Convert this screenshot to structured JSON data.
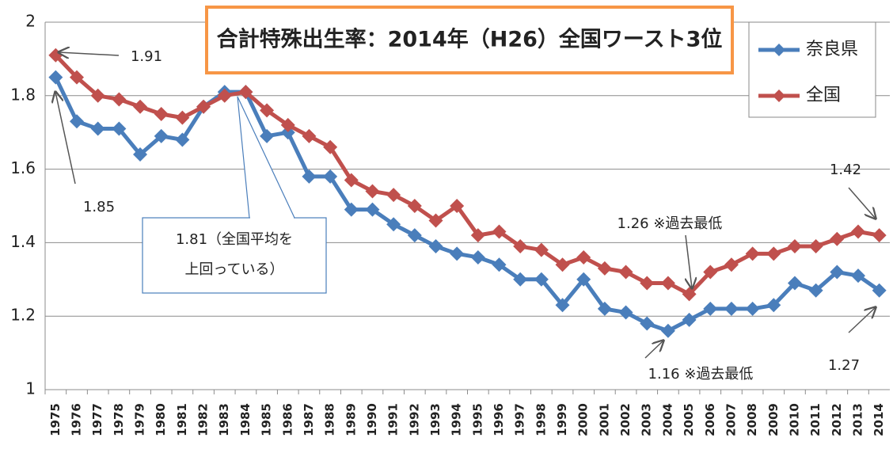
{
  "chart_data": {
    "type": "line",
    "title": "合計特殊出生率：2014年（H26）全国ワースト3位",
    "categories": [
      "1975",
      "1976",
      "1977",
      "1978",
      "1979",
      "1980",
      "1981",
      "1982",
      "1983",
      "1984",
      "1985",
      "1986",
      "1987",
      "1988",
      "1989",
      "1990",
      "1991",
      "1992",
      "1993",
      "1994",
      "1995",
      "1996",
      "1997",
      "1998",
      "1999",
      "2000",
      "2001",
      "2002",
      "2003",
      "2004",
      "2005",
      "2006",
      "2007",
      "2008",
      "2009",
      "2010",
      "2011",
      "2012",
      "2013",
      "2014"
    ],
    "series": [
      {
        "name": "奈良県",
        "color": "#4a7ebb",
        "values": [
          1.85,
          1.73,
          1.71,
          1.71,
          1.64,
          1.69,
          1.68,
          1.77,
          1.81,
          1.81,
          1.69,
          1.7,
          1.58,
          1.58,
          1.49,
          1.49,
          1.45,
          1.42,
          1.39,
          1.37,
          1.36,
          1.34,
          1.3,
          1.3,
          1.23,
          1.3,
          1.22,
          1.21,
          1.18,
          1.16,
          1.19,
          1.22,
          1.22,
          1.22,
          1.23,
          1.29,
          1.27,
          1.32,
          1.31,
          1.27
        ]
      },
      {
        "name": "全国",
        "color": "#c0504d",
        "values": [
          1.91,
          1.85,
          1.8,
          1.79,
          1.77,
          1.75,
          1.74,
          1.77,
          1.8,
          1.81,
          1.76,
          1.72,
          1.69,
          1.66,
          1.57,
          1.54,
          1.53,
          1.5,
          1.46,
          1.5,
          1.42,
          1.43,
          1.39,
          1.38,
          1.34,
          1.36,
          1.33,
          1.32,
          1.29,
          1.29,
          1.26,
          1.32,
          1.34,
          1.37,
          1.37,
          1.39,
          1.39,
          1.41,
          1.43,
          1.42
        ]
      }
    ],
    "ylim": [
      1,
      2
    ],
    "yticks": [
      1,
      1.2,
      1.4,
      1.6,
      1.8,
      2
    ],
    "grid": true,
    "legend": "upper right",
    "annotations": [
      "1.91",
      "1.85",
      "1.26 ※過去最低",
      "1.16 ※過去最低",
      "1.42",
      "1.27"
    ],
    "callout": [
      "1.81（全国平均を",
      "上回っている）"
    ]
  }
}
